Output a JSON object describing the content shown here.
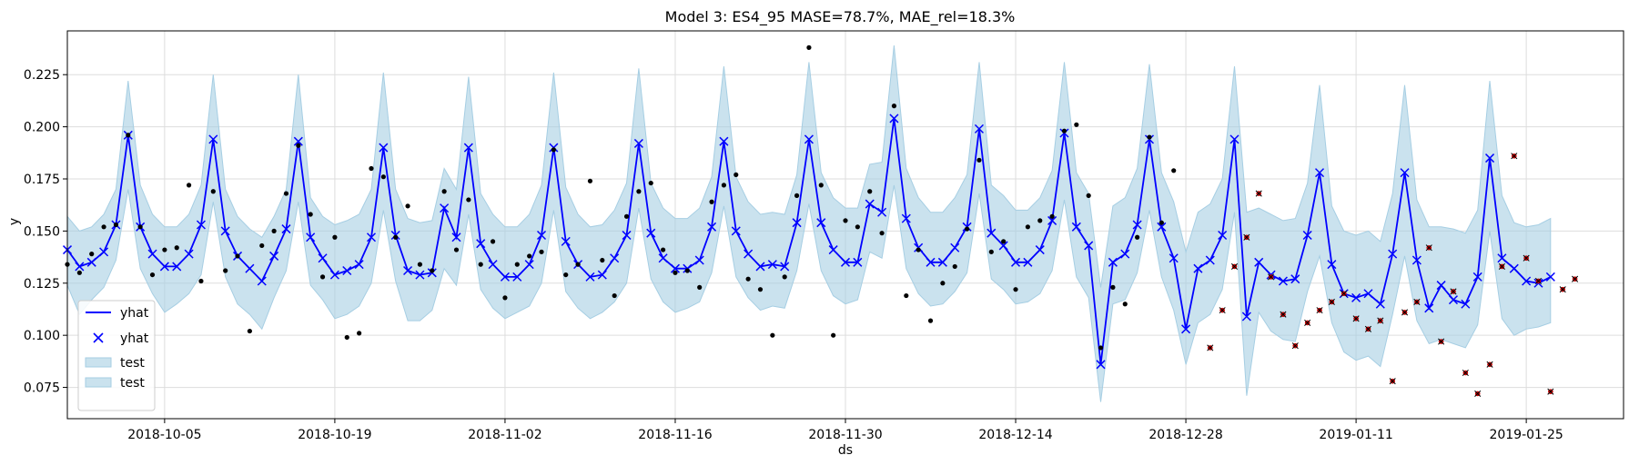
{
  "chart_data": {
    "type": "line",
    "title": "Model 3: ES4_95 MASE=78.7%, MAE_rel=18.3%",
    "xlabel": "ds",
    "ylabel": "y",
    "x_range": [
      "2018-09-27",
      "2019-02-02"
    ],
    "ylim": [
      0.06,
      0.246
    ],
    "grid": true,
    "legend_position": "lower-left",
    "x_ticks": [
      "2018-10-05",
      "2018-10-19",
      "2018-11-02",
      "2018-11-16",
      "2018-11-30",
      "2018-12-14",
      "2018-12-28",
      "2019-01-11",
      "2019-01-25"
    ],
    "y_ticks": [
      "0.075",
      "0.100",
      "0.125",
      "0.150",
      "0.175",
      "0.200",
      "0.225"
    ],
    "legend": [
      "yhat",
      "yhat",
      "test",
      "test"
    ],
    "colors": {
      "line": "#0000ff",
      "band": "#a6cee3",
      "points": "#000000",
      "test_points": "#cc0000"
    },
    "series": [
      {
        "name": "yhat",
        "kind": "line-with-x-markers",
        "start": "2018-09-27",
        "values": [
          0.141,
          0.133,
          0.135,
          0.14,
          0.153,
          0.196,
          0.152,
          0.139,
          0.133,
          0.133,
          0.139,
          0.153,
          0.194,
          0.15,
          0.138,
          0.132,
          0.126,
          0.138,
          0.151,
          0.193,
          0.147,
          0.137,
          0.129,
          0.131,
          0.134,
          0.147,
          0.19,
          0.148,
          0.131,
          0.129,
          0.13,
          0.161,
          0.147,
          0.19,
          0.144,
          0.134,
          0.128,
          0.128,
          0.134,
          0.148,
          0.19,
          0.145,
          0.134,
          0.128,
          0.129,
          0.137,
          0.148,
          0.192,
          0.149,
          0.137,
          0.132,
          0.132,
          0.136,
          0.152,
          0.193,
          0.15,
          0.139,
          0.133,
          0.134,
          0.133,
          0.154,
          0.194,
          0.154,
          0.141,
          0.135,
          0.135,
          0.163,
          0.159,
          0.204,
          0.156,
          0.142,
          0.135,
          0.135,
          0.142,
          0.152,
          0.199,
          0.149,
          0.143,
          0.135,
          0.135,
          0.141,
          0.155,
          0.197,
          0.152,
          0.143,
          0.086,
          0.135,
          0.139,
          0.153,
          0.194,
          0.152,
          0.137,
          0.103,
          0.132,
          0.136,
          0.148,
          0.194,
          0.109,
          0.135,
          0.129,
          0.126,
          0.127,
          0.148,
          0.178,
          0.134,
          0.12,
          0.118,
          0.12,
          0.115,
          0.139,
          0.178,
          0.136,
          0.113,
          0.124,
          0.117,
          0.115,
          0.128,
          0.185,
          0.137,
          0.132,
          0.126,
          0.125,
          0.128
        ]
      },
      {
        "name": "interval",
        "kind": "band",
        "start": "2018-09-27",
        "upper": [
          0.157,
          0.15,
          0.152,
          0.158,
          0.17,
          0.222,
          0.172,
          0.158,
          0.152,
          0.152,
          0.158,
          0.172,
          0.225,
          0.17,
          0.157,
          0.151,
          0.147,
          0.157,
          0.17,
          0.225,
          0.166,
          0.157,
          0.153,
          0.155,
          0.158,
          0.17,
          0.226,
          0.17,
          0.156,
          0.154,
          0.155,
          0.18,
          0.17,
          0.224,
          0.168,
          0.158,
          0.152,
          0.152,
          0.158,
          0.172,
          0.226,
          0.171,
          0.158,
          0.152,
          0.153,
          0.16,
          0.173,
          0.228,
          0.173,
          0.161,
          0.156,
          0.156,
          0.161,
          0.176,
          0.229,
          0.176,
          0.164,
          0.158,
          0.159,
          0.158,
          0.177,
          0.231,
          0.178,
          0.166,
          0.161,
          0.161,
          0.182,
          0.183,
          0.239,
          0.18,
          0.166,
          0.159,
          0.159,
          0.166,
          0.177,
          0.231,
          0.172,
          0.167,
          0.16,
          0.16,
          0.166,
          0.179,
          0.231,
          0.178,
          0.168,
          0.123,
          0.162,
          0.166,
          0.18,
          0.23,
          0.178,
          0.164,
          0.14,
          0.159,
          0.163,
          0.175,
          0.229,
          0.159,
          0.161,
          0.158,
          0.155,
          0.156,
          0.173,
          0.22,
          0.162,
          0.15,
          0.148,
          0.15,
          0.145,
          0.168,
          0.22,
          0.165,
          0.152,
          0.152,
          0.151,
          0.149,
          0.16,
          0.222,
          0.167,
          0.154,
          0.152,
          0.153,
          0.156
        ],
        "lower": [
          0.124,
          0.11,
          0.117,
          0.123,
          0.136,
          0.17,
          0.132,
          0.12,
          0.111,
          0.115,
          0.12,
          0.129,
          0.164,
          0.128,
          0.115,
          0.11,
          0.103,
          0.118,
          0.131,
          0.164,
          0.124,
          0.117,
          0.108,
          0.11,
          0.114,
          0.125,
          0.16,
          0.126,
          0.107,
          0.107,
          0.112,
          0.132,
          0.124,
          0.158,
          0.122,
          0.113,
          0.108,
          0.111,
          0.114,
          0.125,
          0.16,
          0.121,
          0.113,
          0.108,
          0.111,
          0.116,
          0.125,
          0.161,
          0.127,
          0.116,
          0.111,
          0.113,
          0.116,
          0.13,
          0.162,
          0.128,
          0.118,
          0.112,
          0.114,
          0.113,
          0.131,
          0.163,
          0.131,
          0.119,
          0.115,
          0.117,
          0.14,
          0.137,
          0.172,
          0.132,
          0.12,
          0.114,
          0.115,
          0.121,
          0.13,
          0.168,
          0.127,
          0.122,
          0.115,
          0.116,
          0.12,
          0.131,
          0.165,
          0.128,
          0.118,
          0.068,
          0.115,
          0.117,
          0.13,
          0.16,
          0.128,
          0.112,
          0.086,
          0.106,
          0.11,
          0.122,
          0.159,
          0.071,
          0.111,
          0.102,
          0.098,
          0.097,
          0.121,
          0.138,
          0.106,
          0.092,
          0.088,
          0.09,
          0.085,
          0.11,
          0.138,
          0.107,
          0.096,
          0.098,
          0.096,
          0.094,
          0.105,
          0.15,
          0.108,
          0.1,
          0.103,
          0.104,
          0.106
        ]
      },
      {
        "name": "actual",
        "kind": "points",
        "points": [
          [
            "2018-09-27",
            0.134
          ],
          [
            "2018-09-28",
            0.13
          ],
          [
            "2018-09-29",
            0.139
          ],
          [
            "2018-09-30",
            0.152
          ],
          [
            "2018-10-01",
            0.153
          ],
          [
            "2018-10-02",
            0.196
          ],
          [
            "2018-10-03",
            0.152
          ],
          [
            "2018-10-04",
            0.129
          ],
          [
            "2018-10-05",
            0.141
          ],
          [
            "2018-10-06",
            0.142
          ],
          [
            "2018-10-07",
            0.172
          ],
          [
            "2018-10-08",
            0.126
          ],
          [
            "2018-10-09",
            0.169
          ],
          [
            "2018-10-10",
            0.131
          ],
          [
            "2018-10-11",
            0.138
          ],
          [
            "2018-10-12",
            0.102
          ],
          [
            "2018-10-13",
            0.143
          ],
          [
            "2018-10-14",
            0.15
          ],
          [
            "2018-10-15",
            0.168
          ],
          [
            "2018-10-16",
            0.191
          ],
          [
            "2018-10-17",
            0.158
          ],
          [
            "2018-10-18",
            0.128
          ],
          [
            "2018-10-19",
            0.147
          ],
          [
            "2018-10-20",
            0.099
          ],
          [
            "2018-10-21",
            0.101
          ],
          [
            "2018-10-22",
            0.18
          ],
          [
            "2018-10-23",
            0.176
          ],
          [
            "2018-10-24",
            0.147
          ],
          [
            "2018-10-25",
            0.162
          ],
          [
            "2018-10-26",
            0.134
          ],
          [
            "2018-10-27",
            0.131
          ],
          [
            "2018-10-28",
            0.169
          ],
          [
            "2018-10-29",
            0.141
          ],
          [
            "2018-10-30",
            0.165
          ],
          [
            "2018-10-31",
            0.134
          ],
          [
            "2018-11-01",
            0.145
          ],
          [
            "2018-11-02",
            0.118
          ],
          [
            "2018-11-03",
            0.134
          ],
          [
            "2018-11-04",
            0.138
          ],
          [
            "2018-11-05",
            0.14
          ],
          [
            "2018-11-06",
            0.189
          ],
          [
            "2018-11-07",
            0.129
          ],
          [
            "2018-11-08",
            0.134
          ],
          [
            "2018-11-09",
            0.174
          ],
          [
            "2018-11-10",
            0.136
          ],
          [
            "2018-11-11",
            0.119
          ],
          [
            "2018-11-12",
            0.157
          ],
          [
            "2018-11-13",
            0.169
          ],
          [
            "2018-11-14",
            0.173
          ],
          [
            "2018-11-15",
            0.141
          ],
          [
            "2018-11-16",
            0.13
          ],
          [
            "2018-11-17",
            0.131
          ],
          [
            "2018-11-18",
            0.123
          ],
          [
            "2018-11-19",
            0.164
          ],
          [
            "2018-11-20",
            0.172
          ],
          [
            "2018-11-21",
            0.177
          ],
          [
            "2018-11-22",
            0.127
          ],
          [
            "2018-11-23",
            0.122
          ],
          [
            "2018-11-24",
            0.1
          ],
          [
            "2018-11-25",
            0.128
          ],
          [
            "2018-11-26",
            0.167
          ],
          [
            "2018-11-27",
            0.238
          ],
          [
            "2018-11-28",
            0.172
          ],
          [
            "2018-11-29",
            0.1
          ],
          [
            "2018-11-30",
            0.155
          ],
          [
            "2018-12-01",
            0.152
          ],
          [
            "2018-12-02",
            0.169
          ],
          [
            "2018-12-03",
            0.149
          ],
          [
            "2018-12-04",
            0.21
          ],
          [
            "2018-12-05",
            0.119
          ],
          [
            "2018-12-06",
            0.141
          ],
          [
            "2018-12-07",
            0.107
          ],
          [
            "2018-12-08",
            0.125
          ],
          [
            "2018-12-09",
            0.133
          ],
          [
            "2018-12-10",
            0.151
          ],
          [
            "2018-12-11",
            0.184
          ],
          [
            "2018-12-12",
            0.14
          ],
          [
            "2018-12-13",
            0.145
          ],
          [
            "2018-12-14",
            0.122
          ],
          [
            "2018-12-15",
            0.152
          ],
          [
            "2018-12-16",
            0.155
          ],
          [
            "2018-12-17",
            0.157
          ],
          [
            "2018-12-18",
            0.198
          ],
          [
            "2018-12-19",
            0.201
          ],
          [
            "2018-12-20",
            0.167
          ],
          [
            "2018-12-21",
            0.094
          ],
          [
            "2018-12-22",
            0.123
          ],
          [
            "2018-12-23",
            0.115
          ],
          [
            "2018-12-24",
            0.147
          ],
          [
            "2018-12-25",
            0.195
          ],
          [
            "2018-12-26",
            0.154
          ],
          [
            "2018-12-27",
            0.179
          ]
        ]
      },
      {
        "name": "test",
        "kind": "points",
        "points": [
          [
            "2018-12-30",
            0.094
          ],
          [
            "2018-12-31",
            0.112
          ],
          [
            "2019-01-01",
            0.133
          ],
          [
            "2019-01-02",
            0.147
          ],
          [
            "2019-01-03",
            0.168
          ],
          [
            "2019-01-04",
            0.128
          ],
          [
            "2019-01-05",
            0.11
          ],
          [
            "2019-01-06",
            0.095
          ],
          [
            "2019-01-07",
            0.106
          ],
          [
            "2019-01-08",
            0.112
          ],
          [
            "2019-01-09",
            0.116
          ],
          [
            "2019-01-10",
            0.12
          ],
          [
            "2019-01-11",
            0.108
          ],
          [
            "2019-01-12",
            0.103
          ],
          [
            "2019-01-13",
            0.107
          ],
          [
            "2019-01-14",
            0.078
          ],
          [
            "2019-01-15",
            0.111
          ],
          [
            "2019-01-16",
            0.116
          ],
          [
            "2019-01-17",
            0.142
          ],
          [
            "2019-01-18",
            0.097
          ],
          [
            "2019-01-19",
            0.121
          ],
          [
            "2019-01-20",
            0.082
          ],
          [
            "2019-01-21",
            0.072
          ],
          [
            "2019-01-22",
            0.086
          ],
          [
            "2019-01-23",
            0.133
          ],
          [
            "2019-01-24",
            0.186
          ],
          [
            "2019-01-25",
            0.137
          ],
          [
            "2019-01-26",
            0.126
          ],
          [
            "2019-01-27",
            0.073
          ],
          [
            "2019-01-28",
            0.122
          ],
          [
            "2019-01-29",
            0.127
          ]
        ]
      }
    ]
  }
}
